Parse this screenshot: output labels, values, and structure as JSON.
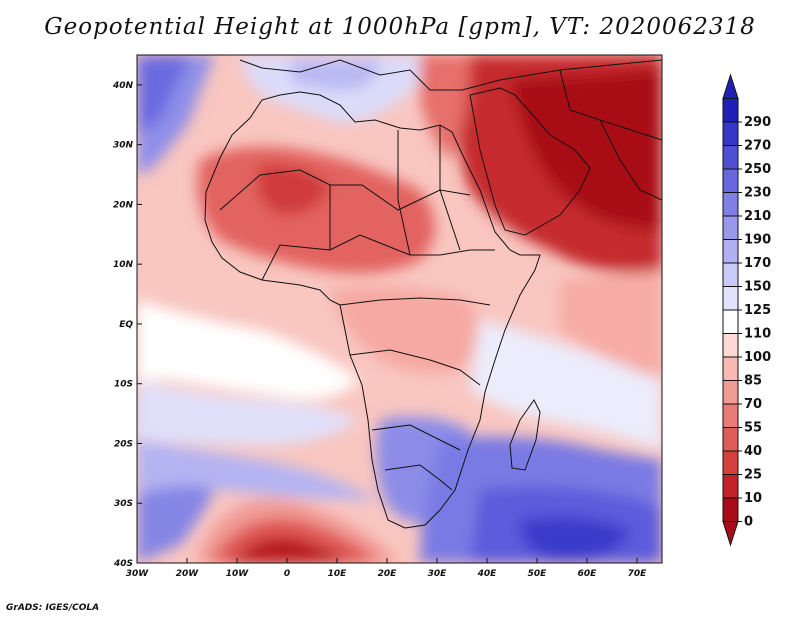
{
  "title": "Geopotential Height at 1000hPa [gpm], VT: 2020062318",
  "footer": "GrADS: IGES/COLA",
  "map": {
    "region": "Africa and surrounding oceans",
    "lon_range": [
      -30,
      75
    ],
    "lat_range": [
      -40,
      45
    ],
    "variable": "Geopotential Height at 1000hPa",
    "units": "gpm",
    "valid_time": "2020062318",
    "lon_ticks": [
      "30W",
      "20W",
      "10W",
      "0",
      "10E",
      "20E",
      "30E",
      "40E",
      "50E",
      "60E",
      "70E"
    ],
    "lat_ticks": [
      "40S",
      "30S",
      "20S",
      "10S",
      "EQ",
      "10N",
      "20N",
      "30N",
      "40N"
    ]
  },
  "colorbar": {
    "labels": [
      "0",
      "10",
      "25",
      "40",
      "55",
      "70",
      "85",
      "100",
      "110",
      "125",
      "150",
      "170",
      "190",
      "210",
      "230",
      "250",
      "270",
      "290"
    ],
    "colors": [
      "#a80c18",
      "#c0232a",
      "#d4403c",
      "#e05c58",
      "#ea7c77",
      "#f19b95",
      "#f8b9b2",
      "#fcd9d4",
      "#ffffff",
      "#e2e2fc",
      "#cacaf7",
      "#b0b0f2",
      "#9898ec",
      "#7f7fe6",
      "#6767df",
      "#4f4fd4",
      "#3737c7",
      "#2020b8"
    ],
    "extends": "both"
  }
}
